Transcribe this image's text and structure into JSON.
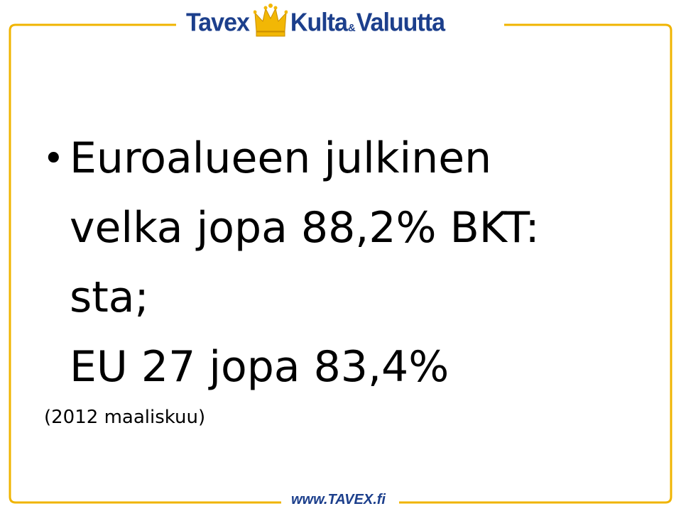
{
  "header": {
    "logo_left": "Tavex",
    "logo_right_a": "Kulta",
    "logo_amp": "&",
    "logo_right_b": "Valuutta",
    "crown_icon": "crown-icon"
  },
  "content": {
    "bullet_lines": [
      "Euroalueen julkinen",
      "velka jopa 88,2% BKT:",
      "sta;",
      "EU 27 jopa 83,4%"
    ],
    "footnote": "(2012 maaliskuu)"
  },
  "footer": {
    "url": "www.TAVEX.fi"
  },
  "colors": {
    "brand_blue": "#1c3f8c",
    "frame_gold": "#f0b400",
    "crown_gold": "#f2b705"
  }
}
